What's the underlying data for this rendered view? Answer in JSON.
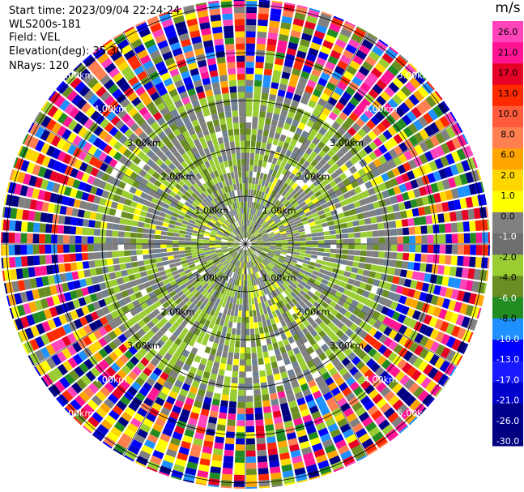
{
  "header": {
    "start_time": "Start time: 2023/09/04 22:24:24",
    "instrument": "WLS200s-181",
    "field": "Field: VEL",
    "elevation": "Elevation(deg): 35.30",
    "nrays": "NRays: 120"
  },
  "chart_data": {
    "type": "heatmap",
    "projection": "polar (PPI scan)",
    "field": "VEL",
    "nrays": 120,
    "range_rings_km": [
      1,
      2,
      3,
      4,
      5
    ],
    "range_labels": [
      "1.00km",
      "2.00km",
      "3.00km",
      "4.00km",
      "5.00km"
    ],
    "colorbar": {
      "unit": "m/s",
      "tick_labels": [
        "26.0",
        "21.0",
        "17.0",
        "13.0",
        "10.0",
        "8.0",
        "6.0",
        "2.0",
        "1.0",
        "0.0",
        "-1.0",
        "-2.0",
        "-4.0",
        "-6.0",
        "-8.0",
        "-10.0",
        "-13.0",
        "-17.0",
        "-21.0",
        "-26.0",
        "-30.0"
      ],
      "colors": [
        "#ff44bb",
        "#ff1493",
        "#e60026",
        "#ff2a00",
        "#ff5a3c",
        "#ff7f50",
        "#ffa500",
        "#ffd700",
        "#ffff00",
        "#808080",
        "#6e6e6e",
        "#9acd32",
        "#6b8e23",
        "#228b22",
        "#1e90ff",
        "#0000ff",
        "#1a1aff",
        "#0000cd",
        "#00008b",
        "#000080"
      ]
    }
  }
}
